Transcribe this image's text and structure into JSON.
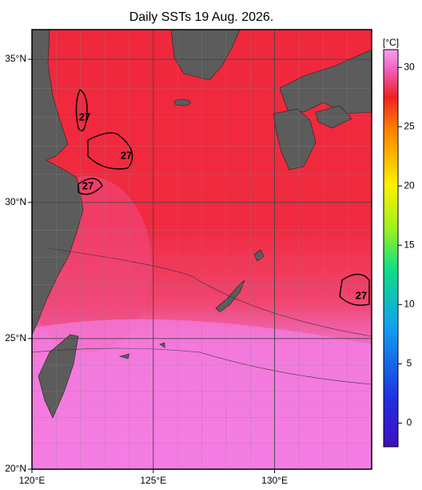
{
  "title": "Daily SSTs 19 Aug. 2026.",
  "map": {
    "xlim": [
      120,
      134
    ],
    "ylim": [
      20,
      36
    ],
    "xticks": [
      {
        "value": 120,
        "label": "120°E"
      },
      {
        "value": 125,
        "label": "125°E"
      },
      {
        "value": 130,
        "label": "130°E"
      }
    ],
    "yticks": [
      {
        "value": 20,
        "label": "20°N"
      },
      {
        "value": 25,
        "label": "25°N"
      },
      {
        "value": 30,
        "label": "30°N"
      },
      {
        "value": 35,
        "label": "35°N"
      }
    ],
    "grid": true,
    "contour_labels": [
      "27",
      "27",
      "27",
      "27"
    ]
  },
  "colorbar": {
    "unit": "[°C]",
    "clim": [
      -2,
      31.5
    ],
    "ticks": [
      0,
      5,
      10,
      15,
      20,
      25,
      30
    ]
  }
}
